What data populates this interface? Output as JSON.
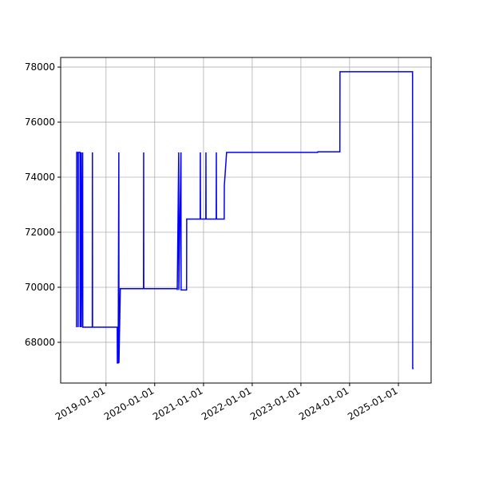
{
  "chart_data": {
    "type": "line",
    "grid": true,
    "x": [
      "2018-05-25",
      "2018-05-26",
      "2018-06-05",
      "2018-06-06",
      "2018-06-07",
      "2018-06-20",
      "2018-06-21",
      "2018-06-29",
      "2018-06-30",
      "2018-07-10",
      "2018-07-11",
      "2018-09-20",
      "2018-09-21",
      "2018-09-22",
      "2019-03-26",
      "2019-03-27",
      "2019-04-02",
      "2019-04-07",
      "2019-04-08",
      "2019-04-18",
      "2019-10-09",
      "2019-10-10",
      "2019-10-11",
      "2020-06-17",
      "2020-06-18",
      "2020-06-29",
      "2020-06-30",
      "2020-07-16",
      "2020-07-17",
      "2020-08-27",
      "2020-08-28",
      "2020-12-07",
      "2020-12-08",
      "2020-12-09",
      "2021-01-18",
      "2021-01-19",
      "2021-01-20",
      "2021-04-06",
      "2021-04-07",
      "2021-04-08",
      "2021-06-05",
      "2021-06-06",
      "2021-06-23",
      "2023-05-06",
      "2023-05-07",
      "2023-10-20",
      "2023-10-21",
      "2025-04-17",
      "2025-04-18",
      "2025-04-25"
    ],
    "series": [
      {
        "color": "#0000ff",
        "values": [
          68550,
          74900,
          74900,
          68550,
          74900,
          74900,
          68550,
          74900,
          68550,
          74900,
          68550,
          68550,
          74900,
          68550,
          68550,
          67250,
          67250,
          74900,
          67250,
          69950,
          69950,
          74900,
          69950,
          69950,
          69900,
          74900,
          69900,
          74900,
          69900,
          69900,
          72480,
          72480,
          74900,
          72480,
          72480,
          74900,
          72480,
          72480,
          74900,
          72480,
          72480,
          73700,
          74900,
          74900,
          74920,
          74920,
          77830,
          77830,
          67050,
          67050
        ]
      }
    ],
    "xlim": [
      "2018-01-26",
      "2025-09-03"
    ],
    "xticks": [
      "2019-01-01",
      "2020-01-01",
      "2021-01-01",
      "2022-01-01",
      "2023-01-01",
      "2024-01-01",
      "2025-01-01"
    ],
    "ylim": [
      66520,
      78350
    ],
    "yticks": [
      68000,
      70000,
      72000,
      74000,
      76000,
      78000
    ]
  }
}
